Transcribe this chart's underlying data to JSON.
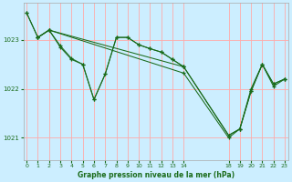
{
  "bg_color": "#cceeff",
  "grid_color": "#ffaaaa",
  "line_color": "#1a6b1a",
  "title": "Graphe pression niveau de la mer (hPa)",
  "ylabel_ticks": [
    1021,
    1022,
    1023
  ],
  "xticks": [
    0,
    1,
    2,
    3,
    4,
    5,
    6,
    7,
    8,
    9,
    10,
    11,
    12,
    13,
    14,
    18,
    19,
    20,
    21,
    22,
    23
  ],
  "xlim": [
    -0.3,
    23.3
  ],
  "ylim": [
    1020.55,
    1023.75
  ],
  "series": [
    {
      "x": [
        0,
        1,
        2,
        3,
        4,
        5,
        6,
        7,
        8,
        9,
        10,
        11,
        12,
        13,
        14
      ],
      "y": [
        1023.55,
        1023.05,
        1023.2,
        1022.85,
        1022.6,
        1022.5,
        1021.78,
        1022.3,
        1023.05,
        1023.05,
        1022.9,
        1022.82,
        1022.75,
        1022.6,
        1022.45
      ]
    },
    {
      "x": [
        0,
        1,
        2,
        3,
        4,
        5,
        6,
        7,
        8,
        9,
        10,
        11,
        12,
        13,
        14,
        18,
        19,
        20,
        21,
        22,
        23
      ],
      "y": [
        1023.55,
        1023.05,
        1023.2,
        1022.88,
        1022.62,
        1022.5,
        1021.78,
        1022.3,
        1023.05,
        1023.05,
        1022.9,
        1022.82,
        1022.75,
        1022.6,
        1022.45,
        1021.05,
        1021.18,
        1021.95,
        1022.5,
        1022.1,
        1022.2
      ]
    },
    {
      "x": [
        1,
        2,
        14,
        18,
        19,
        20,
        21,
        22,
        23
      ],
      "y": [
        1023.05,
        1023.2,
        1022.45,
        1021.05,
        1021.18,
        1021.95,
        1022.5,
        1022.1,
        1022.2
      ]
    },
    {
      "x": [
        1,
        2,
        14,
        18,
        19,
        20,
        21,
        22,
        23
      ],
      "y": [
        1023.05,
        1023.2,
        1022.32,
        1021.0,
        1021.18,
        1022.0,
        1022.5,
        1022.05,
        1022.2
      ]
    }
  ]
}
